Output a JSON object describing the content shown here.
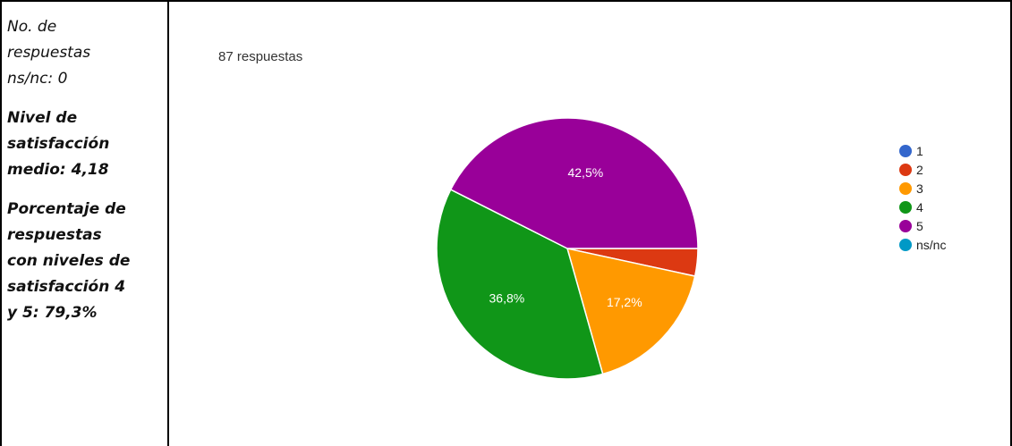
{
  "summary": {
    "line1": "No. de",
    "line2": "respuestas",
    "line3": "ns/nc: 0",
    "avg1": "Nivel de",
    "avg2": "satisfacción",
    "avg3": "medio: 4,18",
    "pct1": "Porcentaje de",
    "pct2": "respuestas",
    "pct3": "con niveles de",
    "pct4": "satisfacción 4",
    "pct5": "y 5: 79,3%"
  },
  "responses_label": "87 respuestas",
  "chart_data": {
    "type": "pie",
    "categories": [
      "1",
      "2",
      "3",
      "4",
      "5",
      "ns/nc"
    ],
    "values": [
      0,
      3.4,
      17.2,
      36.8,
      42.5,
      0
    ],
    "data_labels": [
      "",
      "",
      "17,2%",
      "36,8%",
      "42,5%",
      ""
    ],
    "colors": [
      "#3366cc",
      "#dc3912",
      "#ff9900",
      "#109618",
      "#990099",
      "#0099c6"
    ],
    "legend_position": "right"
  }
}
